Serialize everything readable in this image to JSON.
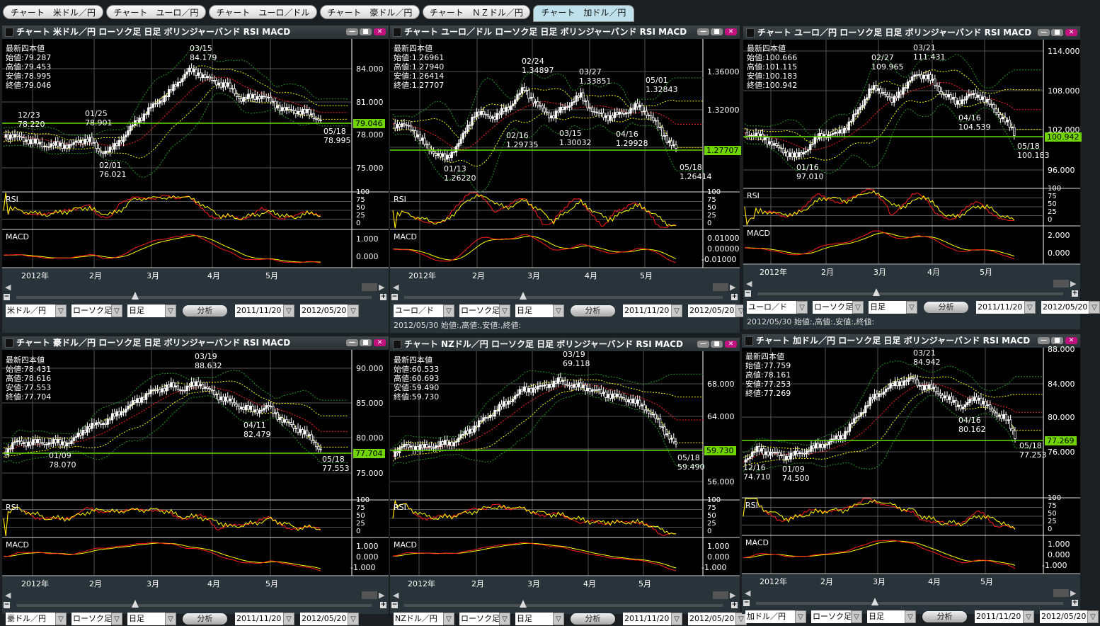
{
  "tabs": [
    "チャート　米ドル／円",
    "チャート　ユーロ／円",
    "チャート　ユーロ／ドル",
    "チャート　豪ドル／円",
    "チャート　ＮＺドル／円",
    "チャート　加ドル／円"
  ],
  "active_tab": 5,
  "colors": {
    "background": "#1b1f21",
    "plot": "#000000",
    "candle": "#ffffff",
    "ma": "#ff0000",
    "band1": "#ffff00",
    "band2": "#1f8a1f",
    "price_line": "#66dd00",
    "close_button": "#c2127f",
    "rsi_fast": "#ff0000",
    "rsi_slow": "#ffff00",
    "active_tab": "#bfe1eb"
  },
  "window_buttons": {
    "minimize": "—",
    "maximize": "■",
    "close": "✕"
  },
  "info_heading": "最新四本値",
  "rsi_label": "RSI",
  "rsi_ticks": [
    "100",
    "75",
    "50",
    "25",
    "0"
  ],
  "macd_label": "MACD",
  "months": [
    "2012年",
    "2月",
    "3月",
    "4月",
    "5月"
  ],
  "scroll": {
    "left": "◀",
    "right": "▶",
    "minus": "−",
    "plus": "+",
    "dropdown": "▽"
  },
  "panels": [
    {
      "title": "チャート 米ドル／円 ローソク足 日足 ボリンジャーバンド RSI MACD",
      "info": [
        "始値:79.287",
        "高値:79.453",
        "安値:78.995",
        "終値:79.046"
      ],
      "annotations": [
        [
          "03/15",
          "84.179"
        ],
        [
          "12/23",
          "78.220"
        ],
        [
          "01/25",
          "78.901"
        ],
        [
          "02/01",
          "76.021"
        ],
        [
          "05/18",
          "78.995"
        ]
      ],
      "y_labels": [
        "84.000",
        "81.000",
        "78.000",
        "75.000"
      ],
      "badge": "79.046",
      "macd_ticks": [
        "1.000",
        "0.000"
      ],
      "controls": {
        "pair": "米ドル／円",
        "chart_type": "ローソク足",
        "period": "日足",
        "analyze": "分析",
        "start": "2011/11/20",
        "end": "2012/05/20"
      }
    },
    {
      "title": "チャート ユーロ／ドル ローソク足 日足 ボリンジャーバンド RSI MACD",
      "info": [
        "始値:1.26961",
        "高値:1.27940",
        "安値:1.26414",
        "終値:1.27707"
      ],
      "annotations": [
        [
          "02/24",
          "1.34897"
        ],
        [
          "03/27",
          "1.33851"
        ],
        [
          "05/01",
          "1.32843"
        ],
        [
          "02/16",
          "1.29735"
        ],
        [
          "03/15",
          "1.30032"
        ],
        [
          "04/16",
          "1.29928"
        ],
        [
          "01/13",
          "1.26220"
        ],
        [
          "05/18",
          "1.26414"
        ]
      ],
      "y_labels": [
        "1.36000",
        "1.32000"
      ],
      "badge": "1.27707",
      "macd_ticks": [
        "0.01000",
        "0.00000",
        "-0.01000"
      ],
      "controls": {
        "pair": "ユーロ／ド",
        "chart_type": "ローソク足",
        "period": "日足",
        "analyze": "分析",
        "start": "2011/11/20",
        "end": "2012/05/20"
      },
      "status": "2012/05/30 始値:,高値:,安値:,終値:"
    },
    {
      "title": "チャート ユーロ／円 ローソク足 日足 ボリンジャーバンド RSI MACD",
      "info": [
        "始値:100.666",
        "高値:101.115",
        "安値:100.183",
        "終値:100.942"
      ],
      "annotations": [
        [
          "03/21",
          "111.431"
        ],
        [
          "02/27",
          "109.965"
        ],
        [
          "04/16",
          "104.539"
        ],
        [
          "01/16",
          "97.010"
        ],
        [
          "05/18",
          "100.183"
        ]
      ],
      "y_labels": [
        "114.000",
        "108.000",
        "102.000",
        "96.000"
      ],
      "badge": "100.942",
      "macd_ticks": [
        "2.000",
        "0.000"
      ],
      "controls": {
        "pair": "ユーロ／ド",
        "chart_type": "ローソク足",
        "period": "日足",
        "analyze": "分析",
        "start": "2011/11/20",
        "end": "2012/05/20"
      },
      "status": "2012/05/30 始値:,高値:,安値:,終値:"
    },
    {
      "title": "チャート 豪ドル／円 ローソク足 日足 ボリンジャーバンド RSI MACD",
      "info": [
        "始値:78.431",
        "高値:78.616",
        "安値:77.553",
        "終値:77.704"
      ],
      "annotations": [
        [
          "03/19",
          "88.632"
        ],
        [
          "04/11",
          "82.479"
        ],
        [
          "01/09",
          "78.070"
        ],
        [
          "05/18",
          "77.553"
        ]
      ],
      "y_labels": [
        "90.000",
        "85.000",
        "80.000",
        "75.000"
      ],
      "badge": "77.704",
      "macd_ticks": [
        "1.000",
        "0.000",
        "-1.000"
      ],
      "controls": {
        "pair": "豪ドル／円",
        "chart_type": "ローソク足",
        "period": "日足",
        "analyze": "分析",
        "start": "2011/11/20",
        "end": "2012/05/20"
      }
    },
    {
      "title": "チャート NZドル／円 ローソク足 日足 ボリンジャーバンド RSI MACD",
      "info": [
        "始値:60.533",
        "高値:60.693",
        "安値:59.490",
        "終値:59.730"
      ],
      "annotations": [
        [
          "03/19",
          "69.118"
        ],
        [
          "05/18",
          "59.490"
        ]
      ],
      "y_labels": [
        "68.000",
        "64.000",
        "56.000"
      ],
      "badge": "59.730",
      "macd_ticks": [
        "1.000",
        "0.000",
        "-1.000"
      ],
      "controls": {
        "pair": "NZドル／円",
        "chart_type": "ローソク足",
        "period": "日足",
        "analyze": "分析",
        "start": "2011/11/20",
        "end": "2012/05/20"
      }
    },
    {
      "title": "チャート 加ドル／円 ローソク足 日足 ボリンジャーバンド RSI MACD",
      "info": [
        "始値:77.759",
        "高値:78.161",
        "安値:77.253",
        "終値:77.269"
      ],
      "annotations": [
        [
          "03/21",
          "84.942"
        ],
        [
          "04/16",
          "80.162"
        ],
        [
          "12/16",
          "74.710"
        ],
        [
          "01/09",
          "74.500"
        ],
        [
          "05/18",
          "77.253"
        ]
      ],
      "y_labels": [
        "88.000",
        "84.000",
        "80.000",
        "76.000"
      ],
      "badge": "77.269",
      "macd_ticks": [
        "1.000",
        "0.000",
        "-1.000"
      ],
      "controls": {
        "pair": "加ドル／円",
        "chart_type": "ローソク足",
        "period": "日足",
        "analyze": "分析",
        "start": "2011/11/20",
        "end": "2012/05/20"
      }
    }
  ]
}
